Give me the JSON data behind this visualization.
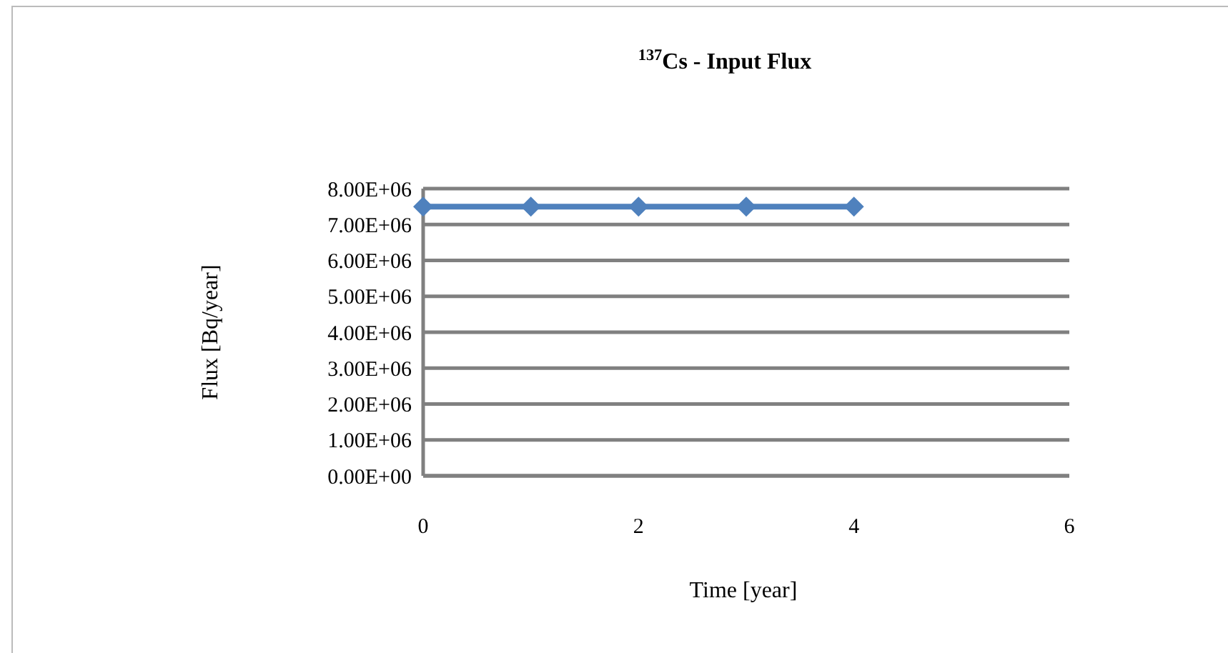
{
  "chart_data": {
    "type": "line",
    "title": "$^{137}$Cs - Input Flux",
    "xlabel": "Time [year]",
    "ylabel": "Flux [Bq/year]",
    "x": [
      0,
      1,
      2,
      3,
      4
    ],
    "series": [
      {
        "color": "#4f81bd",
        "values": [
          7500000,
          7500000,
          7500000,
          7500000,
          7500000
        ]
      }
    ],
    "xlim": [
      0,
      6
    ],
    "xticks": [
      0,
      2,
      4,
      6
    ],
    "ylim": [
      0,
      8000000
    ],
    "yticks": [
      {
        "value": 0,
        "label": "0.00E+00"
      },
      {
        "value": 1000000,
        "label": "1.00E+06"
      },
      {
        "value": 2000000,
        "label": "2.00E+06"
      },
      {
        "value": 3000000,
        "label": "3.00E+06"
      },
      {
        "value": 4000000,
        "label": "4.00E+06"
      },
      {
        "value": 5000000,
        "label": "5.00E+06"
      },
      {
        "value": 6000000,
        "label": "6.00E+06"
      },
      {
        "value": 7000000,
        "label": "7.00E+06"
      },
      {
        "value": 8000000,
        "label": "8.00E+06"
      }
    ],
    "grid": "y",
    "marker": "diamond",
    "line_style": "solid"
  }
}
